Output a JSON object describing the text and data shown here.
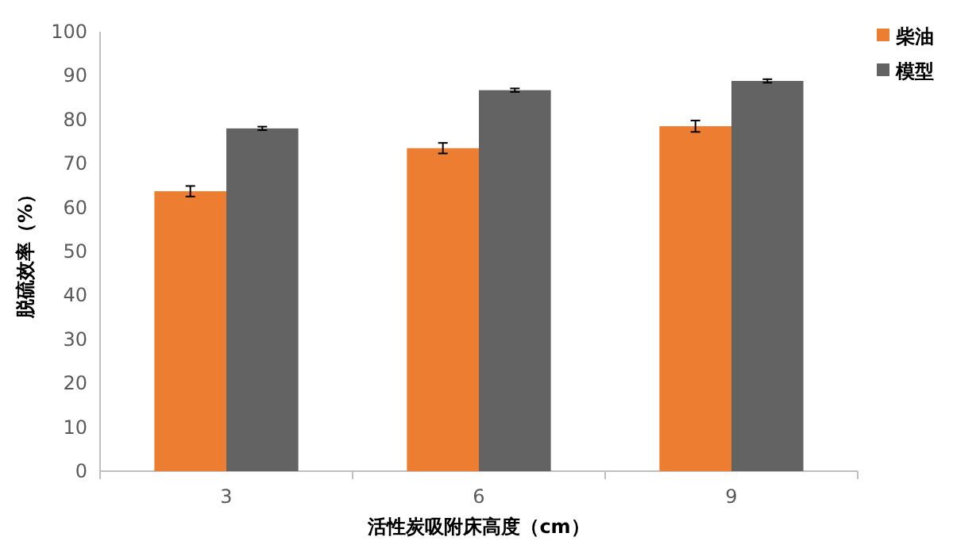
{
  "chart_data": {
    "type": "bar",
    "xlabel": "活性炭吸附床高度（cm）",
    "ylabel": "脱硫效率（%）",
    "categories": [
      "3",
      "6",
      "9"
    ],
    "series": [
      {
        "name": "柴油",
        "color": "#ed7d31",
        "values": [
          63.7,
          73.5,
          78.5
        ],
        "errors": [
          1.2,
          1.2,
          1.3
        ]
      },
      {
        "name": "模型",
        "color": "#636363",
        "values": [
          78,
          86.7,
          88.8
        ],
        "errors": [
          0.4,
          0.4,
          0.4
        ]
      }
    ],
    "ylim": [
      0,
      100
    ],
    "yticks": [
      0,
      10,
      20,
      30,
      40,
      50,
      60,
      70,
      80,
      90,
      100
    ],
    "legend": "top right",
    "grid": false
  }
}
